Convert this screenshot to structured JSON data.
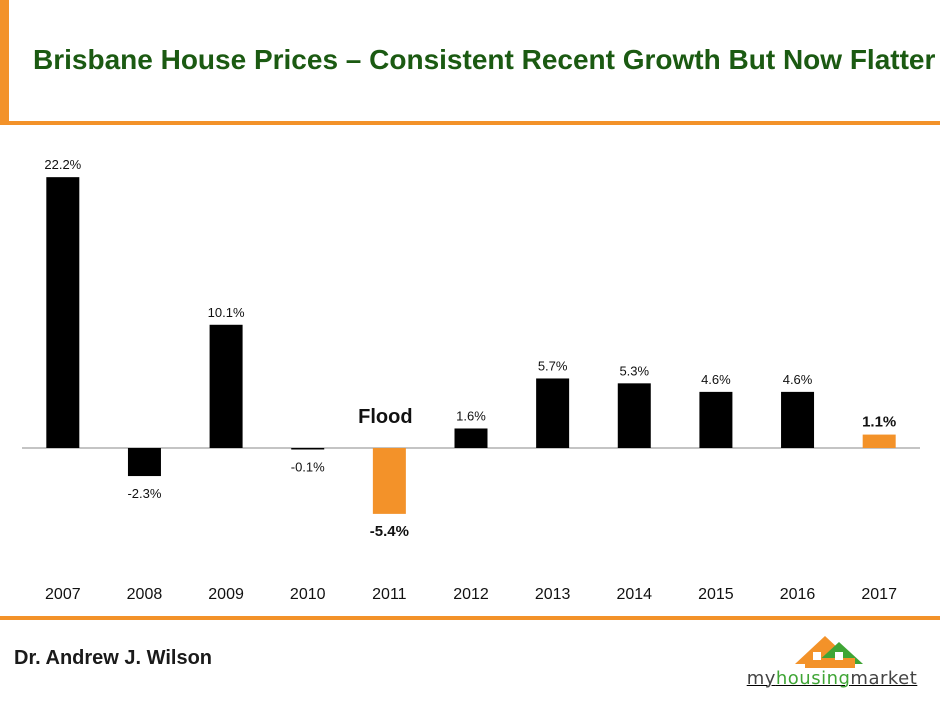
{
  "header": {
    "title": "Brisbane House Prices – Consistent Recent Growth But Now Flatter"
  },
  "footer": {
    "author": "Dr. Andrew J. Wilson",
    "logo": {
      "part1": "my",
      "part2": "housing",
      "part3": "market"
    }
  },
  "colors": {
    "bar_default": "#000000",
    "bar_highlight": "#f39229",
    "accent": "#f39229",
    "title": "#1b5a12"
  },
  "chart_data": {
    "type": "bar",
    "categories": [
      "2007",
      "2008",
      "2009",
      "2010",
      "2011",
      "2012",
      "2013",
      "2014",
      "2015",
      "2016",
      "2017"
    ],
    "values": [
      22.2,
      -2.3,
      10.1,
      -0.1,
      -5.4,
      1.6,
      5.7,
      5.3,
      4.6,
      4.6,
      1.1
    ],
    "value_labels": [
      "22.2%",
      "-2.3%",
      "10.1%",
      "-0.1%",
      "-5.4%",
      "1.6%",
      "5.7%",
      "5.3%",
      "4.6%",
      "4.6%",
      "1.1%"
    ],
    "highlighted": [
      "2011",
      "2017"
    ],
    "annotations": [
      {
        "category": "2011",
        "text": "Flood"
      }
    ],
    "grid": false,
    "legend": "none"
  }
}
